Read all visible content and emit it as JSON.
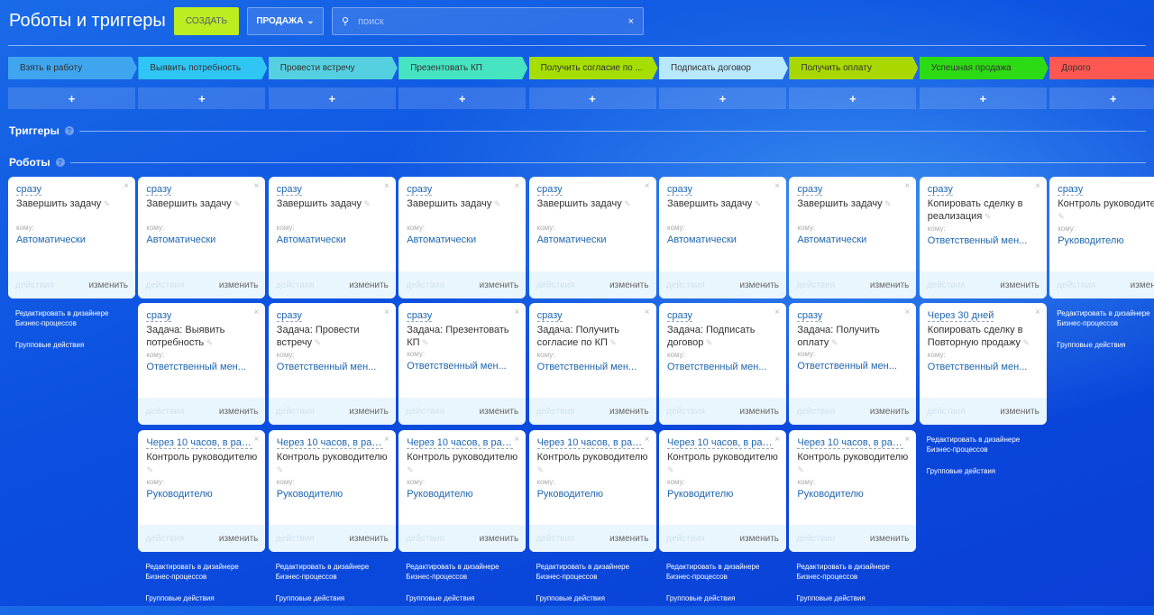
{
  "header": {
    "title": "Роботы и триггеры",
    "create_label": "СОЗДАТЬ",
    "pipeline_label": "ПРОДАЖА",
    "search_placeholder": "поиск"
  },
  "stages": [
    {
      "label": "Взять в работу",
      "color": "#3fa5ef"
    },
    {
      "label": "Выявить потребность",
      "color": "#2fc6f6"
    },
    {
      "label": "Провести встречу",
      "color": "#55d0e0"
    },
    {
      "label": "Презентовать КП",
      "color": "#47e4c2"
    },
    {
      "label": "Получить согласие по ...",
      "color": "#a5de00"
    },
    {
      "label": "Подписать договор",
      "color": "#b8e8fb"
    },
    {
      "label": "Получить оплату",
      "color": "#a8d800"
    },
    {
      "label": "Успешная продажа",
      "color": "#2ddb14"
    },
    {
      "label": "Дорого",
      "color": "#ff5752"
    }
  ],
  "add_label": "+",
  "sections": {
    "triggers": "Триггеры",
    "robots": "Роботы"
  },
  "card_labels": {
    "to": "кому:",
    "actions": "действия",
    "edit": "изменить"
  },
  "links": {
    "designer": "Редактировать в дизайнере Бизнес-процессов",
    "group": "Групповые действия"
  },
  "columns": [
    [
      {
        "when": "сразу",
        "name": "Завершить задачу",
        "to": "Автоматически"
      }
    ],
    [
      {
        "when": "сразу",
        "name": "Завершить задачу",
        "to": "Автоматически"
      },
      {
        "when": "сразу",
        "name": "Задача: Выявить\nпотребность",
        "to": "Ответственный мен..."
      },
      {
        "when": "Через 10 часов, в раб...",
        "name": "Контроль руководителю\n",
        "to": "Руководителю"
      }
    ],
    [
      {
        "when": "сразу",
        "name": "Завершить задачу",
        "to": "Автоматически"
      },
      {
        "when": "сразу",
        "name": "Задача: Провести\nвстречу",
        "to": "Ответственный мен..."
      },
      {
        "when": "Через 10 часов, в раб...",
        "name": "Контроль руководителю\n",
        "to": "Руководителю"
      }
    ],
    [
      {
        "when": "сразу",
        "name": "Завершить задачу",
        "to": "Автоматически"
      },
      {
        "when": "сразу",
        "name": "Задача: Презентовать КП",
        "to": "Ответственный мен..."
      },
      {
        "when": "Через 10 часов, в раб...",
        "name": "Контроль руководителю\n",
        "to": "Руководителю"
      }
    ],
    [
      {
        "when": "сразу",
        "name": "Завершить задачу",
        "to": "Автоматически"
      },
      {
        "when": "сразу",
        "name": "Задача: Получить\nсогласие по КП",
        "to": "Ответственный мен..."
      },
      {
        "when": "Через 10 часов, в раб...",
        "name": "Контроль руководителю\n",
        "to": "Руководителю"
      }
    ],
    [
      {
        "when": "сразу",
        "name": "Завершить задачу",
        "to": "Автоматически"
      },
      {
        "when": "сразу",
        "name": "Задача: Подписать\nдоговор",
        "to": "Ответственный мен..."
      },
      {
        "when": "Через 10 часов, в раб...",
        "name": "Контроль руководителю\n",
        "to": "Руководителю"
      }
    ],
    [
      {
        "when": "сразу",
        "name": "Завершить задачу",
        "to": "Автоматически"
      },
      {
        "when": "сразу",
        "name": "Задача: Получить оплату",
        "to": "Ответственный мен..."
      },
      {
        "when": "Через 10 часов, в раб...",
        "name": "Контроль руководителю\n",
        "to": "Руководителю"
      }
    ],
    [
      {
        "when": "сразу",
        "name": "Копировать сделку в\nреализация",
        "to": "Ответственный мен..."
      },
      {
        "when": "Через 30 дней",
        "name": "Копировать сделку в\nПовторную продажу",
        "to": "Ответственный мен..."
      }
    ],
    [
      {
        "when": "сразу",
        "name": "Контроль руководителю\n",
        "to": "Руководителю"
      }
    ]
  ]
}
